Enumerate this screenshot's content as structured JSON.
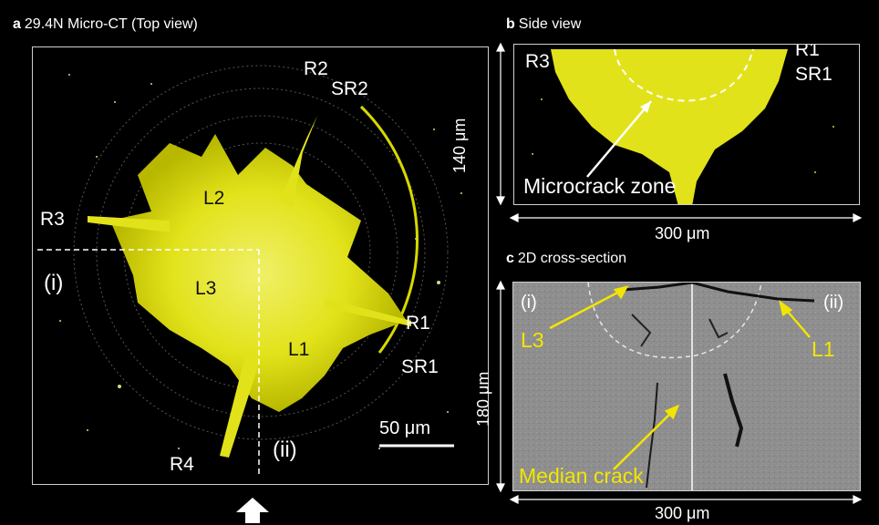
{
  "panel_a": {
    "letter": "a",
    "title": "29.4N Micro-CT (Top view)",
    "labels": {
      "r2": "R2",
      "sr2": "SR2",
      "r3": "R3",
      "l2": "L2",
      "i": "(i)",
      "l3": "L3",
      "r1": "R1",
      "l1": "L1",
      "sr1": "SR1",
      "r4": "R4",
      "ii": "(ii)"
    },
    "scalebar": "50 μm"
  },
  "panel_b": {
    "letter": "b",
    "title": "Side view",
    "labels": {
      "r3": "R3",
      "r1": "R1",
      "sr1": "SR1",
      "zone": "Microcrack zone"
    },
    "height_dim": "140 μm",
    "width_dim": "300 μm"
  },
  "panel_c": {
    "letter": "c",
    "title": "2D cross-section",
    "labels": {
      "i": "(i)",
      "ii": "(ii)",
      "l3": "L3",
      "l1": "L1",
      "median": "Median crack"
    },
    "height_dim": "180 μm",
    "width_dim": "300 μm"
  },
  "colors": {
    "crack_yellow": "#e6e600",
    "label_yellow": "#f2e600",
    "background": "#000000",
    "cross_section_gray": "#8e8e8e"
  },
  "icons": {
    "view_direction": "up-arrow-icon"
  }
}
